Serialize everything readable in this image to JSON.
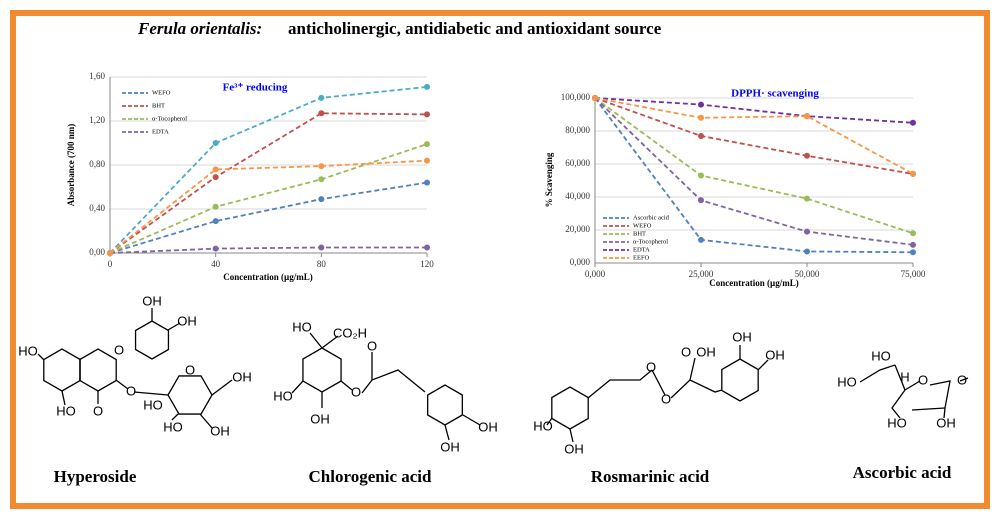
{
  "header": {
    "species": "Ferula orientalis:",
    "title": "anticholinergic, antidiabetic and antioxidant  source"
  },
  "chart_data": [
    {
      "type": "line",
      "title": "Fe³⁺ reducing",
      "x_label": "Concentration (µg/mL)",
      "y_label": "Absorbance (700 nm)",
      "x": [
        0,
        40,
        80,
        120
      ],
      "xlim": [
        0,
        120
      ],
      "xticks": [
        0,
        40,
        80,
        120
      ],
      "ylim": [
        0,
        1.6
      ],
      "yticks": [
        {
          "value": 0,
          "label": "0,00"
        },
        {
          "value": 0.4,
          "label": "0,40"
        },
        {
          "value": 0.8,
          "label": "0,80"
        },
        {
          "value": 1.2,
          "label": "1,20"
        },
        {
          "value": 1.6,
          "label": "1,60"
        }
      ],
      "grid": true,
      "series": [
        {
          "name": "WEFO",
          "color": "#4f81bd",
          "values": [
            0,
            0.29,
            0.49,
            0.64
          ]
        },
        {
          "name": "BHT",
          "color": "#c0504d",
          "values": [
            0,
            0.69,
            1.27,
            1.26
          ]
        },
        {
          "name": "α-Tocopherol",
          "color": "#9bbb59",
          "values": [
            0,
            0.42,
            0.67,
            0.99
          ]
        },
        {
          "name": "EDTA",
          "color": "#8064a2",
          "values": [
            0,
            0.04,
            0.05,
            0.05
          ]
        },
        {
          "color": "#4bacc6",
          "values": [
            0,
            1.0,
            1.41,
            1.51
          ]
        },
        {
          "color": "#f79646",
          "values": [
            0,
            0.76,
            0.79,
            0.84
          ]
        }
      ]
    },
    {
      "type": "line",
      "title": "DPPH· scavenging",
      "x_label": "Concentration (µg/mL)",
      "y_label": "% Scavenging",
      "x": [
        0,
        25,
        50,
        75
      ],
      "xlim": [
        0,
        75
      ],
      "xticks": [
        {
          "value": 0,
          "label": "0,000"
        },
        {
          "value": 25,
          "label": "25,000"
        },
        {
          "value": 50,
          "label": "50,000"
        },
        {
          "value": 75,
          "label": "75,000"
        }
      ],
      "ylim": [
        0,
        100
      ],
      "yticks": [
        {
          "value": 0,
          "label": "0,000"
        },
        {
          "value": 20,
          "label": "20,000"
        },
        {
          "value": 40,
          "label": "40,000"
        },
        {
          "value": 60,
          "label": "60,000"
        },
        {
          "value": 80,
          "label": "80,000"
        },
        {
          "value": 100,
          "label": "100,000"
        }
      ],
      "grid": true,
      "series": [
        {
          "name": "Ascorbic acid",
          "color": "#4f81bd",
          "values": [
            100,
            14,
            7,
            6.5
          ]
        },
        {
          "name": "WEFO",
          "color": "#c0504d",
          "values": [
            100,
            77,
            65,
            54
          ]
        },
        {
          "name": "BHT",
          "color": "#9bbb59",
          "values": [
            100,
            53,
            39,
            18
          ]
        },
        {
          "name": "α-Tocopherol",
          "color": "#8064a2",
          "values": [
            100,
            38,
            19,
            11
          ]
        },
        {
          "name": "EDTA",
          "color": "#7030a0",
          "values": [
            100,
            96,
            89,
            85
          ]
        },
        {
          "name": "EEFO",
          "color": "#f79646",
          "values": [
            100,
            88,
            89,
            54
          ]
        }
      ]
    }
  ],
  "compounds": [
    {
      "name": "Hyperoside",
      "atoms": [
        "OH",
        "OH",
        "HO",
        "O",
        "O",
        "HO",
        "O",
        "O",
        "OH",
        "HO",
        "HO",
        "OH"
      ]
    },
    {
      "name": "Chlorogenic acid",
      "atoms": [
        "HO",
        "CO₂H",
        "HO",
        "O",
        "O",
        "OH",
        "OH",
        "OH"
      ]
    },
    {
      "name": "Rosmarinic acid",
      "atoms": [
        "OH",
        "OH",
        "O",
        "OH",
        "O",
        "O",
        "HO",
        "OH"
      ]
    },
    {
      "name": "Ascorbic acid",
      "atoms": [
        "HO",
        "H",
        "HO",
        "O",
        "O",
        "HO",
        "OH"
      ]
    }
  ]
}
